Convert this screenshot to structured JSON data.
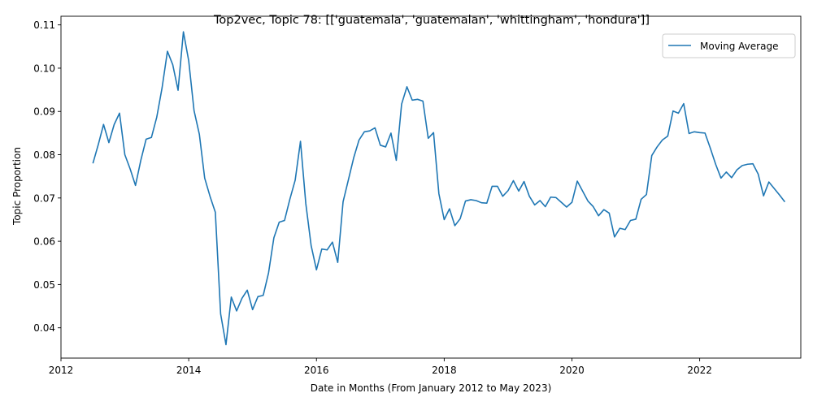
{
  "chart_data": {
    "type": "line",
    "title": "Top2vec, Topic 78: [['guatemala', 'guatemalan', 'whittingham', 'hondura']]",
    "xlabel": "Date in Months (From January 2012 to May 2023)",
    "ylabel": "Topic Proportion",
    "xlim": [
      "2012-01",
      "2023-08"
    ],
    "ylim": [
      0.033,
      0.112
    ],
    "x_ticks": [
      "2012",
      "2014",
      "2016",
      "2018",
      "2020",
      "2022"
    ],
    "y_ticks": [
      "0.04",
      "0.05",
      "0.06",
      "0.07",
      "0.08",
      "0.09",
      "0.10",
      "0.11"
    ],
    "grid": false,
    "legend_position": "top-right",
    "colors": {
      "series": "#1f77b4"
    },
    "series": [
      {
        "name": "Moving Average",
        "x": [
          "2012-07",
          "2012-08",
          "2012-09",
          "2012-10",
          "2012-11",
          "2012-12",
          "2013-01",
          "2013-02",
          "2013-03",
          "2013-04",
          "2013-05",
          "2013-06",
          "2013-07",
          "2013-08",
          "2013-09",
          "2013-10",
          "2013-11",
          "2013-12",
          "2014-01",
          "2014-02",
          "2014-03",
          "2014-04",
          "2014-05",
          "2014-06",
          "2014-07",
          "2014-08",
          "2014-09",
          "2014-10",
          "2014-11",
          "2014-12",
          "2015-01",
          "2015-02",
          "2015-03",
          "2015-04",
          "2015-05",
          "2015-06",
          "2015-07",
          "2015-08",
          "2015-09",
          "2015-10",
          "2015-11",
          "2015-12",
          "2016-01",
          "2016-02",
          "2016-03",
          "2016-04",
          "2016-05",
          "2016-06",
          "2016-07",
          "2016-08",
          "2016-09",
          "2016-10",
          "2016-11",
          "2016-12",
          "2017-01",
          "2017-02",
          "2017-03",
          "2017-04",
          "2017-05",
          "2017-06",
          "2017-07",
          "2017-08",
          "2017-09",
          "2017-10",
          "2017-11",
          "2017-12",
          "2018-01",
          "2018-02",
          "2018-03",
          "2018-04",
          "2018-05",
          "2018-06",
          "2018-07",
          "2018-08",
          "2018-09",
          "2018-10",
          "2018-11",
          "2018-12",
          "2019-01",
          "2019-02",
          "2019-03",
          "2019-04",
          "2019-05",
          "2019-06",
          "2019-07",
          "2019-08",
          "2019-09",
          "2019-10",
          "2019-11",
          "2019-12",
          "2020-01",
          "2020-02",
          "2020-03",
          "2020-04",
          "2020-05",
          "2020-06",
          "2020-07",
          "2020-08",
          "2020-09",
          "2020-10",
          "2020-11",
          "2020-12",
          "2021-01",
          "2021-02",
          "2021-03",
          "2021-04",
          "2021-05",
          "2021-06",
          "2021-07",
          "2021-08",
          "2021-09",
          "2021-10",
          "2021-11",
          "2021-12",
          "2022-01",
          "2022-02",
          "2022-03",
          "2022-04",
          "2022-05",
          "2022-06",
          "2022-07",
          "2022-08",
          "2022-09",
          "2022-10",
          "2022-11",
          "2022-12",
          "2023-01",
          "2023-02",
          "2023-03",
          "2023-04",
          "2023-05"
        ],
        "values": [
          0.078,
          0.0823,
          0.087,
          0.0828,
          0.087,
          0.0896,
          0.08,
          0.0767,
          0.0729,
          0.0787,
          0.0836,
          0.084,
          0.0887,
          0.0955,
          0.1039,
          0.1008,
          0.0949,
          0.1084,
          0.1017,
          0.0902,
          0.0847,
          0.0746,
          0.0704,
          0.0667,
          0.0432,
          0.0361,
          0.0471,
          0.0439,
          0.0468,
          0.0487,
          0.0442,
          0.0472,
          0.0475,
          0.0527,
          0.0608,
          0.0644,
          0.0648,
          0.0697,
          0.0741,
          0.0831,
          0.0687,
          0.059,
          0.0534,
          0.0582,
          0.058,
          0.0598,
          0.0551,
          0.0691,
          0.0742,
          0.0793,
          0.0834,
          0.0853,
          0.0855,
          0.0862,
          0.0822,
          0.0818,
          0.085,
          0.0787,
          0.0917,
          0.0957,
          0.0926,
          0.0928,
          0.0924,
          0.0838,
          0.0851,
          0.071,
          0.065,
          0.0675,
          0.0636,
          0.0652,
          0.0693,
          0.0696,
          0.0694,
          0.0689,
          0.0688,
          0.0727,
          0.0727,
          0.0704,
          0.0717,
          0.074,
          0.0716,
          0.0738,
          0.0704,
          0.0684,
          0.0694,
          0.068,
          0.0702,
          0.0701,
          0.069,
          0.0679,
          0.069,
          0.0739,
          0.0716,
          0.0693,
          0.068,
          0.0659,
          0.0673,
          0.0665,
          0.061,
          0.063,
          0.0627,
          0.0648,
          0.0651,
          0.0697,
          0.0708,
          0.0798,
          0.0818,
          0.0834,
          0.0843,
          0.0901,
          0.0896,
          0.0918,
          0.0849,
          0.0853,
          0.0851,
          0.085,
          0.0815,
          0.0778,
          0.0746,
          0.076,
          0.0747,
          0.0765,
          0.0775,
          0.0778,
          0.0779,
          0.0755,
          0.0705,
          0.0737,
          0.0722,
          0.0707,
          0.0691
        ]
      }
    ]
  }
}
